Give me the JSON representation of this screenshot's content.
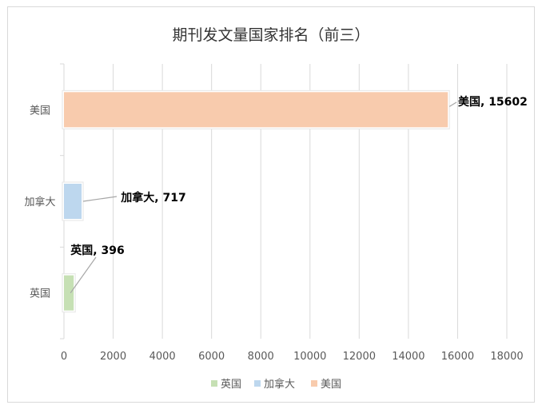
{
  "chart_data": {
    "type": "bar",
    "orientation": "horizontal",
    "title": "期刊发文量国家排名（前三）",
    "categories": [
      "英国",
      "加拿大",
      "美国"
    ],
    "series": [
      {
        "name": "英国",
        "values": [
          396,
          null,
          null
        ],
        "color": "#c6e0b4"
      },
      {
        "name": "加拿大",
        "values": [
          null,
          717,
          null
        ],
        "color": "#bdd7ee"
      },
      {
        "name": "美国",
        "values": [
          null,
          null,
          15602
        ],
        "color": "#f8cbad"
      }
    ],
    "data_labels": [
      "英国, 396",
      "加拿大, 717",
      "美国, 15602"
    ],
    "xlim": [
      0,
      18000
    ],
    "x_ticks": [
      "0",
      "2000",
      "4000",
      "6000",
      "8000",
      "10000",
      "12000",
      "14000",
      "16000",
      "18000"
    ],
    "grid": true,
    "legend": "bottom",
    "legend_entries": [
      "英国",
      "加拿大",
      "美国"
    ]
  }
}
